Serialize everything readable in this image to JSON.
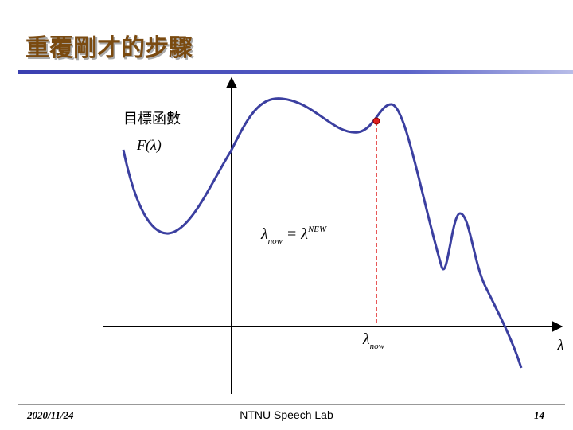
{
  "header": {
    "title": "重覆剛才的步驟"
  },
  "diagram": {
    "objective_label": "目標函數",
    "function_label": "F(λ)",
    "equation": {
      "lhs": "λ",
      "lhs_sub": "now",
      "op": "=",
      "rhs": "λ",
      "rhs_sup": "NEW"
    },
    "point_label": {
      "symbol": "λ",
      "sub": "now"
    },
    "axis_label": "λ"
  },
  "footer": {
    "date": "2020/11/24",
    "center": "NTNU Speech Lab",
    "page": "14"
  }
}
